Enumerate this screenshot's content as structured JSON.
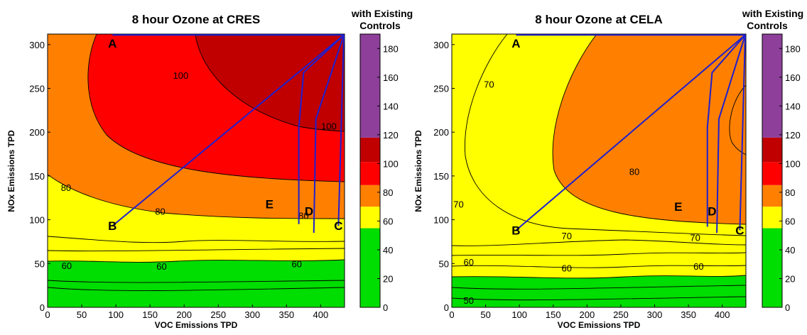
{
  "chart_data": [
    {
      "type": "contour",
      "title": "8 hour Ozone at CRES",
      "xlabel": "VOC Emissions TPD",
      "ylabel": "NOx Emissions TPD",
      "xlim": [
        0,
        435
      ],
      "ylim": [
        0,
        312
      ],
      "xticks": [
        "0",
        "50",
        "100",
        "150",
        "200",
        "250",
        "300",
        "350",
        "400"
      ],
      "yticks": [
        "0",
        "50",
        "100",
        "150",
        "200",
        "250",
        "300"
      ],
      "colorbar_title": "with Existing Controls",
      "colorbar_ticks": [
        "0",
        "20",
        "40",
        "60",
        "80",
        "100",
        "120",
        "140",
        "160",
        "180"
      ],
      "contour_labels": [
        {
          "text": "100",
          "x": 195,
          "y": 265
        },
        {
          "text": "100",
          "x": 412,
          "y": 207
        },
        {
          "text": "80",
          "x": 27,
          "y": 137
        },
        {
          "text": "80",
          "x": 165,
          "y": 110
        },
        {
          "text": "80",
          "x": 375,
          "y": 105
        },
        {
          "text": "60",
          "x": 28,
          "y": 48
        },
        {
          "text": "60",
          "x": 167,
          "y": 47
        },
        {
          "text": "60",
          "x": 365,
          "y": 50
        }
      ],
      "points": [
        {
          "label": "A",
          "x": 95,
          "y": 300
        },
        {
          "label": "B",
          "x": 95,
          "y": 93
        },
        {
          "label": "C",
          "x": 426,
          "y": 93
        },
        {
          "label": "D",
          "x": 383,
          "y": 110
        },
        {
          "label": "E",
          "x": 325,
          "y": 118
        }
      ]
    },
    {
      "type": "contour",
      "title": "8 hour Ozone at CELA",
      "xlabel": "VOC Emissions TPD",
      "ylabel": "NOx Emissions TPD",
      "xlim": [
        0,
        435
      ],
      "ylim": [
        0,
        312
      ],
      "xticks": [
        "0",
        "50",
        "100",
        "150",
        "200",
        "250",
        "300",
        "350",
        "400"
      ],
      "yticks": [
        "0",
        "50",
        "100",
        "150",
        "200",
        "250",
        "300"
      ],
      "colorbar_title": "with Existing Controls",
      "colorbar_ticks": [
        "0",
        "20",
        "40",
        "60",
        "80",
        "100",
        "120",
        "140",
        "160",
        "180"
      ],
      "contour_labels": [
        {
          "text": "70",
          "x": 55,
          "y": 255
        },
        {
          "text": "70",
          "x": 10,
          "y": 118
        },
        {
          "text": "70",
          "x": 170,
          "y": 82
        },
        {
          "text": "70",
          "x": 360,
          "y": 80
        },
        {
          "text": "80",
          "x": 270,
          "y": 155
        },
        {
          "text": "60",
          "x": 25,
          "y": 52
        },
        {
          "text": "60",
          "x": 170,
          "y": 45
        },
        {
          "text": "60",
          "x": 365,
          "y": 47
        },
        {
          "text": "50",
          "x": 25,
          "y": 8
        }
      ],
      "points": [
        {
          "label": "A",
          "x": 95,
          "y": 300
        },
        {
          "label": "B",
          "x": 95,
          "y": 88
        },
        {
          "label": "C",
          "x": 426,
          "y": 88
        },
        {
          "label": "D",
          "x": 385,
          "y": 110
        },
        {
          "label": "E",
          "x": 335,
          "y": 115
        }
      ]
    }
  ],
  "colors": {
    "green": "#00dd00",
    "yellow": "#ffff00",
    "orange": "#ff8000",
    "red": "#ff0000",
    "darkred": "#c00000",
    "purple": "#8d3f9a",
    "path": "#1f1fd0"
  }
}
